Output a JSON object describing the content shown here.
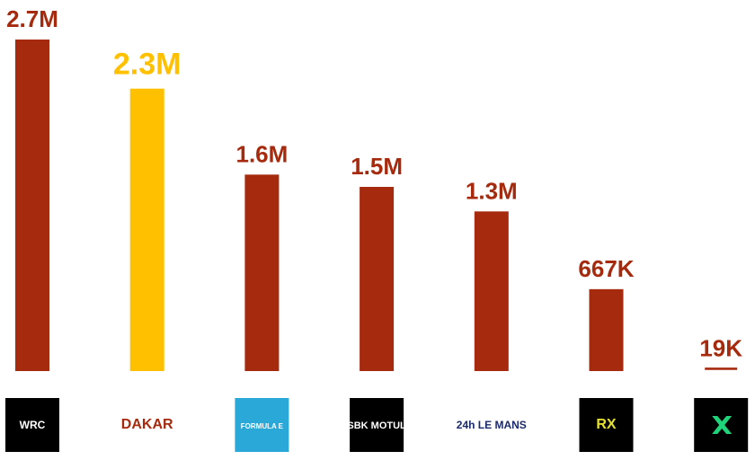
{
  "chart_data": {
    "type": "bar",
    "categories": [
      "WRC",
      "DAKAR",
      "FORMULA E",
      "SBK MOTUL",
      "24h LE MANS",
      "RX",
      null
    ],
    "values": [
      2700000,
      2300000,
      1600000,
      1500000,
      1300000,
      667000,
      19000
    ],
    "value_labels": [
      "2.7M",
      "2.3M",
      "1.6M",
      "1.5M",
      "1.3M",
      "667K",
      "19K"
    ],
    "colors": [
      "#a52a0e",
      "#ffc000",
      "#a52a0e",
      "#a52a0e",
      "#a52a0e",
      "#a52a0e",
      "#a52a0e"
    ],
    "ylim": [
      0,
      2700000
    ]
  }
}
